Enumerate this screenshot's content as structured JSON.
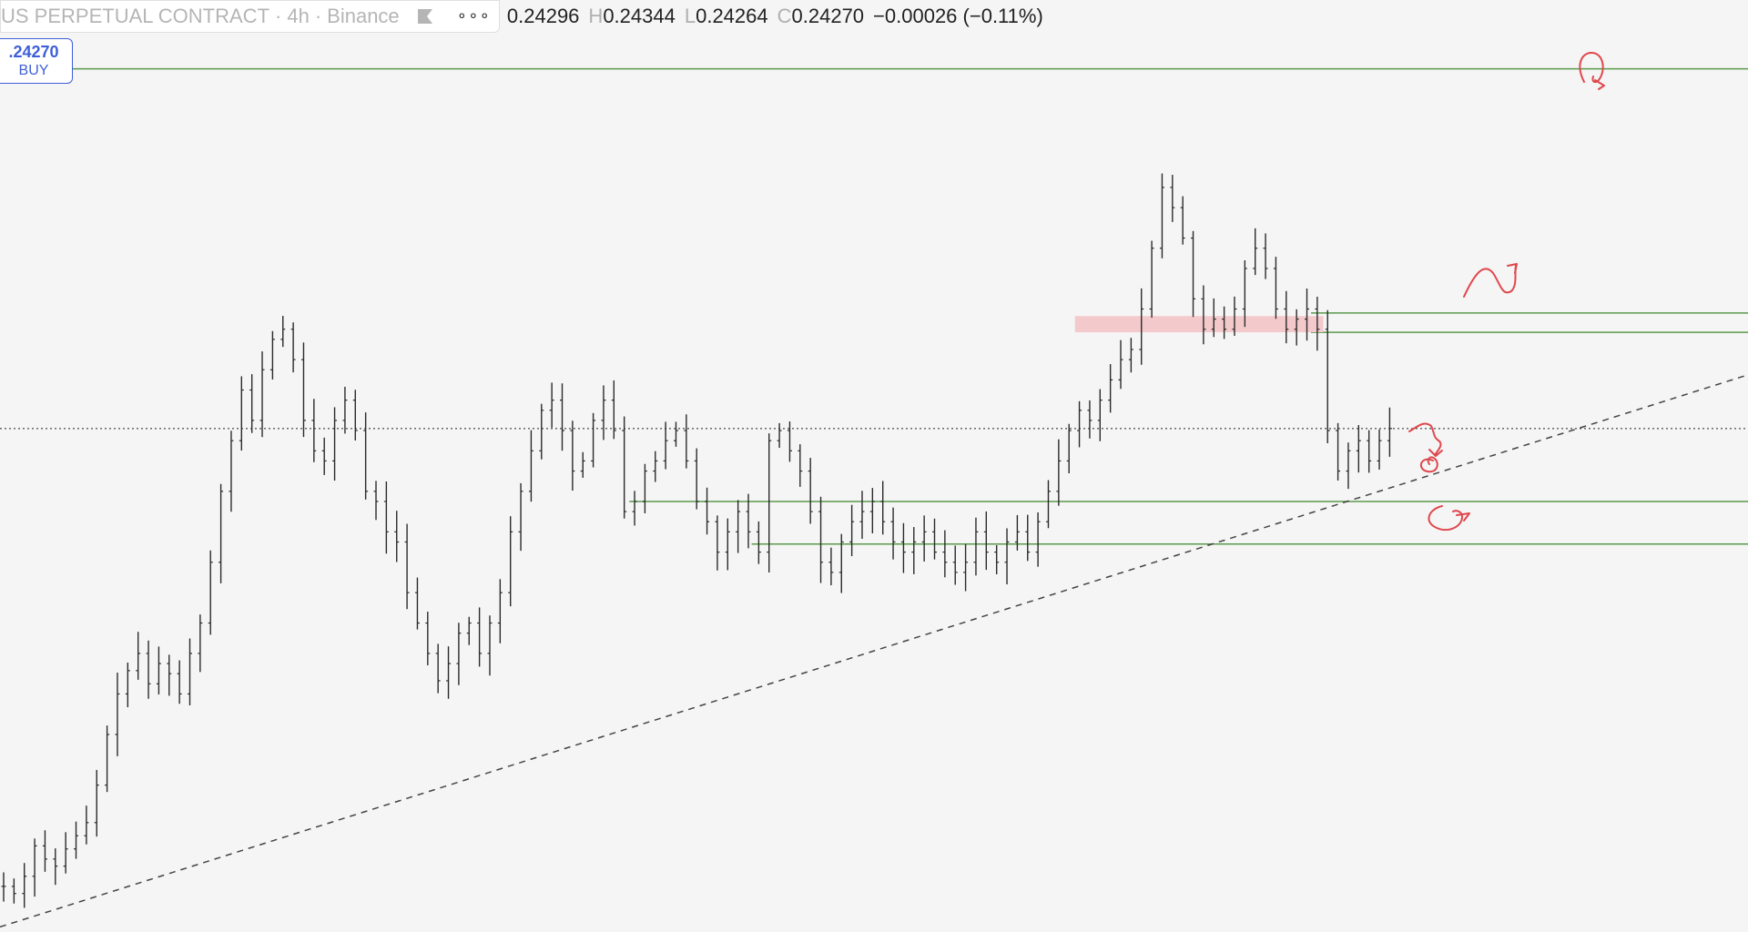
{
  "legend": {
    "symbol": "US PERPETUAL CONTRACT",
    "sep1": "·",
    "interval": "4h",
    "sep2": "·",
    "exchange": "Binance",
    "flag_icon": "flag-icon",
    "more_icon": "more-dots-icon",
    "o_label": "",
    "o_value": "0.24296",
    "h_label": "H",
    "h_value": "0.24344",
    "l_label": "L",
    "l_value": "0.24264",
    "c_label": "C",
    "c_value": "0.24270",
    "change": "−0.00026 (−0.11%)"
  },
  "buy_button": {
    "price": ".24270",
    "label": "BUY"
  },
  "colors": {
    "background": "#f5f5f5",
    "candles": "#2a2a2a",
    "horizontal_lines": "#5a9a4a",
    "trendline": "#444444",
    "zone_fill": "#f3c9cc",
    "annotation": "#e0474c",
    "buy_accent": "#3f5fd8"
  },
  "chart_data": {
    "type": "line",
    "title": "",
    "xlabel": "",
    "ylabel": "",
    "current_price": 0.2427,
    "series": [
      {
        "values": [
          0.1975,
          0.1968,
          0.1985,
          0.2015,
          0.2002,
          0.1995,
          0.2012,
          0.2025,
          0.2038,
          0.2075,
          0.2125,
          0.2165,
          0.2188,
          0.2205,
          0.2175,
          0.2195,
          0.2185,
          0.2165,
          0.2205,
          0.2235,
          0.2295,
          0.2365,
          0.2415,
          0.2465,
          0.2435,
          0.2485,
          0.2515,
          0.2525,
          0.2495,
          0.2435,
          0.2405,
          0.2395,
          0.2435,
          0.2455,
          0.2425,
          0.2365,
          0.2355,
          0.2325,
          0.2315,
          0.2265,
          0.2235,
          0.2205,
          0.2178,
          0.2195,
          0.2225,
          0.2235,
          0.2205,
          0.2235,
          0.2265,
          0.2325,
          0.2365,
          0.2405,
          0.2445,
          0.2455,
          0.2425,
          0.2385,
          0.2395,
          0.2435,
          0.2455,
          0.2425,
          0.2345,
          0.2355,
          0.2385,
          0.2395,
          0.2415,
          0.2425,
          0.2395,
          0.2355,
          0.2335,
          0.2305,
          0.2325,
          0.2345,
          0.2325,
          0.2305,
          0.2415,
          0.2425,
          0.2405,
          0.2385,
          0.2345,
          0.2295,
          0.2285,
          0.2315,
          0.2335,
          0.2345,
          0.2355,
          0.2335,
          0.2315,
          0.2305,
          0.2315,
          0.2325,
          0.2305,
          0.2295,
          0.2285,
          0.2295,
          0.2325,
          0.2305,
          0.2295,
          0.2315,
          0.2325,
          0.2305,
          0.2335,
          0.2365,
          0.2395,
          0.2425,
          0.2445,
          0.2435,
          0.2455,
          0.2475,
          0.2495,
          0.2505,
          0.2545,
          0.2605,
          0.2665,
          0.2645,
          0.2615,
          0.2555,
          0.2525,
          0.2535,
          0.2525,
          0.2545,
          0.2585,
          0.2605,
          0.2585,
          0.2545,
          0.2525,
          0.2535,
          0.2545,
          0.2525,
          0.2425,
          0.2385,
          0.2405,
          0.2415,
          0.2395,
          0.2415,
          0.2427
        ]
      }
    ],
    "horizontal_levels": [
      {
        "price": 0.2782,
        "from": 0.04
      },
      {
        "price": 0.2541,
        "from": 0.75
      },
      {
        "price": 0.2522,
        "from": 0.75
      },
      {
        "price": 0.2355,
        "from": 0.36
      },
      {
        "price": 0.2313,
        "from": 0.43
      }
    ],
    "zone": {
      "top": 0.2538,
      "bottom": 0.2522
    },
    "trendline": {
      "start_price": 0.1935,
      "end_price": 0.248
    },
    "ylim": [
      0.193,
      0.285
    ]
  }
}
